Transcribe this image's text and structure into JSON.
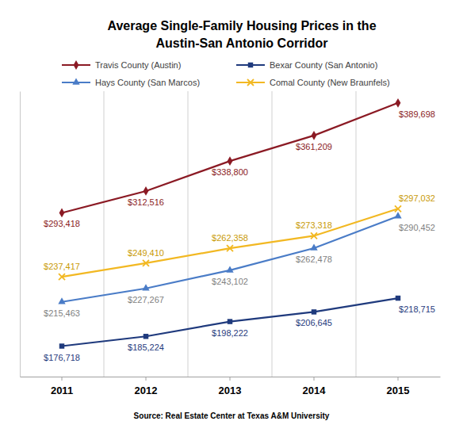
{
  "chart_data": {
    "type": "line",
    "title": "Average Single-Family Housing Prices in the\nAustin-San Antonio Corridor",
    "source": "Source: Real Estate Center at Texas A&M University",
    "categories": [
      "2011",
      "2012",
      "2013",
      "2014",
      "2015"
    ],
    "series": [
      {
        "name": "Travis County (Austin)",
        "color": "#8b1a24",
        "marker": "diamond",
        "values": [
          293418,
          312516,
          338800,
          361209,
          389698
        ],
        "value_labels": [
          "$293,418",
          "$312,516",
          "$338,800",
          "$361,209",
          "$389,698"
        ]
      },
      {
        "name": "Bexar County (San Antonio)",
        "color": "#1f3a7d",
        "marker": "square",
        "values": [
          176718,
          185224,
          198222,
          206645,
          218715
        ],
        "value_labels": [
          "$176,718",
          "$185,224",
          "$198,222",
          "$206,645",
          "$218,715"
        ]
      },
      {
        "name": "Hays County (San Marcos)",
        "color": "#4a7cc7",
        "marker": "triangle",
        "values": [
          215463,
          227267,
          243102,
          262478,
          290452
        ],
        "value_labels": [
          "$215,463",
          "$227,267",
          "$243,102",
          "$262,478",
          "$290,452"
        ]
      },
      {
        "name": "Comal County (New Braunfels)",
        "color": "#f2b822",
        "marker": "x",
        "values": [
          237417,
          249410,
          262358,
          273318,
          297032
        ],
        "value_labels": [
          "$237,417",
          "$249,410",
          "$262,358",
          "$273,318",
          "$297,032"
        ]
      }
    ],
    "ylim": [
      150000,
      400000
    ],
    "yticks": [],
    "grid": true,
    "legend": "top",
    "data_labels": true,
    "tick_labels": "x"
  }
}
